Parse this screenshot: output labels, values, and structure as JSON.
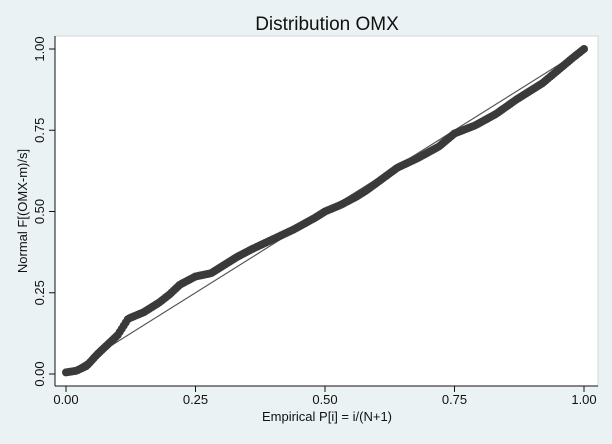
{
  "chart_data": {
    "type": "scatter",
    "title": "Distribution OMX",
    "xlabel": "Empirical P[i] = i/(N+1)",
    "ylabel": "Normal F[(OMX-m)/s]",
    "xlim": [
      0,
      1
    ],
    "ylim": [
      0,
      1
    ],
    "x_ticks": [
      "0.00",
      "0.25",
      "0.50",
      "0.75",
      "1.00"
    ],
    "y_ticks": [
      "0.00",
      "0.25",
      "0.50",
      "0.75",
      "1.00"
    ],
    "grid": false,
    "reference_line": [
      [
        0,
        0
      ],
      [
        1,
        1
      ]
    ],
    "colors": {
      "background": "#eaf2f3",
      "plot_area": "#ffffff",
      "markers": "#3a3a3a",
      "reference_line": "#555555"
    },
    "curve": [
      [
        0.0,
        0.005
      ],
      [
        0.02,
        0.01
      ],
      [
        0.04,
        0.025
      ],
      [
        0.06,
        0.06
      ],
      [
        0.08,
        0.09
      ],
      [
        0.1,
        0.12
      ],
      [
        0.12,
        0.17
      ],
      [
        0.15,
        0.19
      ],
      [
        0.18,
        0.22
      ],
      [
        0.2,
        0.245
      ],
      [
        0.22,
        0.275
      ],
      [
        0.25,
        0.3
      ],
      [
        0.28,
        0.31
      ],
      [
        0.3,
        0.33
      ],
      [
        0.33,
        0.36
      ],
      [
        0.36,
        0.385
      ],
      [
        0.4,
        0.415
      ],
      [
        0.44,
        0.445
      ],
      [
        0.48,
        0.48
      ],
      [
        0.5,
        0.5
      ],
      [
        0.53,
        0.52
      ],
      [
        0.56,
        0.545
      ],
      [
        0.58,
        0.565
      ],
      [
        0.61,
        0.6
      ],
      [
        0.64,
        0.635
      ],
      [
        0.68,
        0.665
      ],
      [
        0.72,
        0.7
      ],
      [
        0.75,
        0.74
      ],
      [
        0.79,
        0.765
      ],
      [
        0.83,
        0.8
      ],
      [
        0.87,
        0.845
      ],
      [
        0.92,
        0.895
      ],
      [
        0.95,
        0.935
      ],
      [
        0.98,
        0.975
      ],
      [
        1.0,
        1.0
      ]
    ]
  }
}
